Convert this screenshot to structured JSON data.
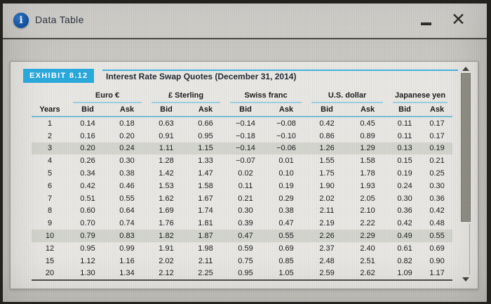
{
  "window": {
    "title": "Data Table",
    "icons": {
      "info": "i",
      "close": "✕"
    }
  },
  "exhibit": {
    "label": "EXHIBIT 8.12",
    "title": "Interest Rate Swap Quotes (December 31, 2014)"
  },
  "table": {
    "row_header": "Years",
    "groups": [
      {
        "label": "Euro €"
      },
      {
        "label": "£ Sterling"
      },
      {
        "label": "Swiss franc"
      },
      {
        "label": "U.S. dollar"
      },
      {
        "label": "Japanese yen"
      }
    ],
    "sub_headers": [
      "Bid",
      "Ask"
    ],
    "rows": [
      {
        "years": "1",
        "highlight": false,
        "values": [
          "0.14",
          "0.18",
          "0.63",
          "0.66",
          "−0.14",
          "−0.08",
          "0.42",
          "0.45",
          "0.11",
          "0.17"
        ]
      },
      {
        "years": "2",
        "highlight": false,
        "values": [
          "0.16",
          "0.20",
          "0.91",
          "0.95",
          "−0.18",
          "−0.10",
          "0.86",
          "0.89",
          "0.11",
          "0.17"
        ]
      },
      {
        "years": "3",
        "highlight": true,
        "values": [
          "0.20",
          "0.24",
          "1.11",
          "1.15",
          "−0.14",
          "−0.06",
          "1.26",
          "1.29",
          "0.13",
          "0.19"
        ]
      },
      {
        "years": "4",
        "highlight": false,
        "values": [
          "0.26",
          "0.30",
          "1.28",
          "1.33",
          "−0.07",
          "0.01",
          "1.55",
          "1.58",
          "0.15",
          "0.21"
        ]
      },
      {
        "years": "5",
        "highlight": false,
        "values": [
          "0.34",
          "0.38",
          "1.42",
          "1.47",
          "0.02",
          "0.10",
          "1.75",
          "1.78",
          "0.19",
          "0.25"
        ]
      },
      {
        "years": "6",
        "highlight": false,
        "values": [
          "0.42",
          "0.46",
          "1.53",
          "1.58",
          "0.11",
          "0.19",
          "1.90",
          "1.93",
          "0.24",
          "0.30"
        ]
      },
      {
        "years": "7",
        "highlight": false,
        "values": [
          "0.51",
          "0.55",
          "1.62",
          "1.67",
          "0.21",
          "0.29",
          "2.02",
          "2.05",
          "0.30",
          "0.36"
        ]
      },
      {
        "years": "8",
        "highlight": false,
        "values": [
          "0.60",
          "0.64",
          "1.69",
          "1.74",
          "0.30",
          "0.38",
          "2.11",
          "2.10",
          "0.36",
          "0.42"
        ]
      },
      {
        "years": "9",
        "highlight": false,
        "values": [
          "0.70",
          "0.74",
          "1.76",
          "1.81",
          "0.39",
          "0.47",
          "2.19",
          "2.22",
          "0.42",
          "0.48"
        ]
      },
      {
        "years": "10",
        "highlight": true,
        "values": [
          "0.79",
          "0.83",
          "1.82",
          "1.87",
          "0.47",
          "0.55",
          "2.26",
          "2.29",
          "0.49",
          "0.55"
        ]
      },
      {
        "years": "12",
        "highlight": false,
        "values": [
          "0.95",
          "0.99",
          "1.91",
          "1.98",
          "0.59",
          "0.69",
          "2.37",
          "2.40",
          "0.61",
          "0.69"
        ]
      },
      {
        "years": "15",
        "highlight": false,
        "values": [
          "1.12",
          "1.16",
          "2.02",
          "2.11",
          "0.75",
          "0.85",
          "2.48",
          "2.51",
          "0.82",
          "0.90"
        ]
      },
      {
        "years": "20",
        "highlight": false,
        "values": [
          "1.30",
          "1.34",
          "2.12",
          "2.25",
          "0.95",
          "1.05",
          "2.59",
          "2.62",
          "1.09",
          "1.17"
        ]
      }
    ]
  },
  "colors": {
    "exhibit_accent": "#2aa7db",
    "rule_blue": "#9bcfe3",
    "row_highlight": "#d2d4cd",
    "info_icon_blue": "#0d52a5",
    "titlebar_gray": "#d6d4d0"
  }
}
